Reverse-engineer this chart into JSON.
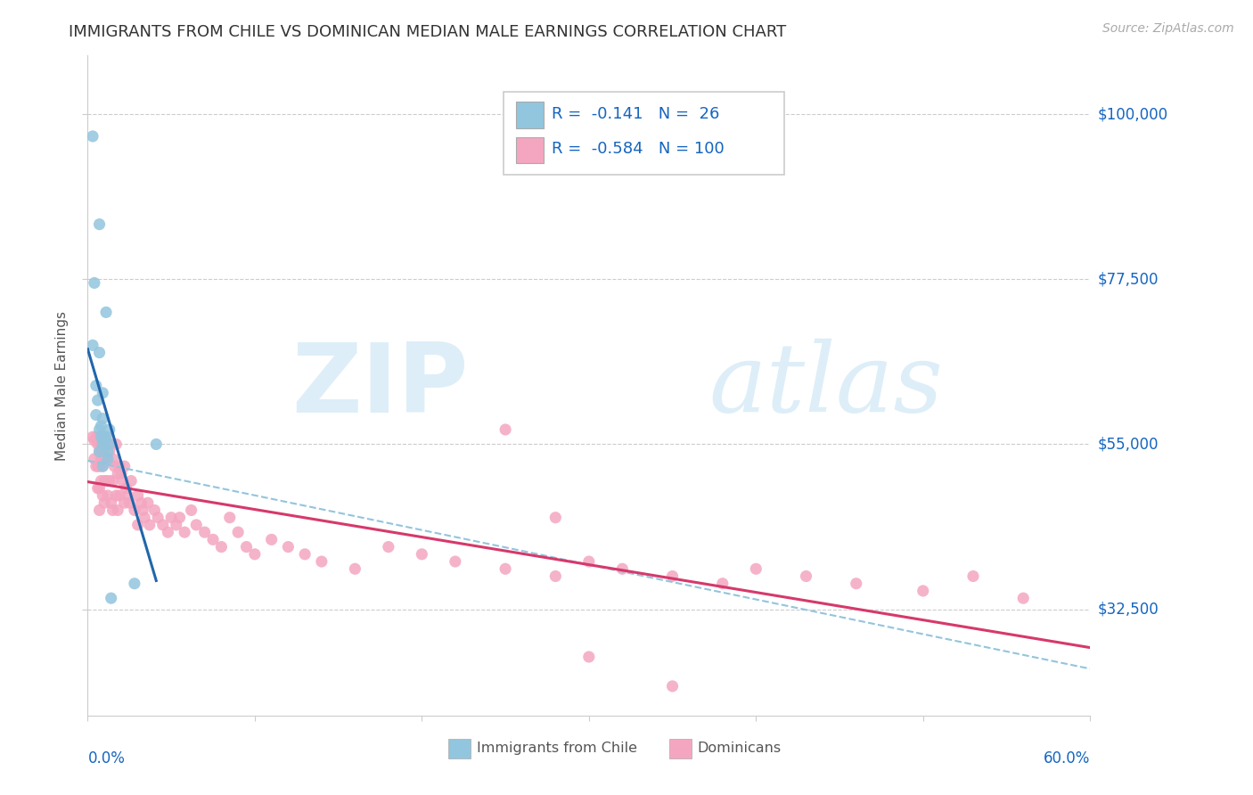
{
  "title": "IMMIGRANTS FROM CHILE VS DOMINICAN MEDIAN MALE EARNINGS CORRELATION CHART",
  "source": "Source: ZipAtlas.com",
  "ylabel": "Median Male Earnings",
  "ytick_labels": [
    "$32,500",
    "$55,000",
    "$77,500",
    "$100,000"
  ],
  "ytick_values": [
    32500,
    55000,
    77500,
    100000
  ],
  "xmin": 0.0,
  "xmax": 0.6,
  "ymin": 18000,
  "ymax": 108000,
  "legend_chile_r": "-0.141",
  "legend_chile_n": "26",
  "legend_dom_r": "-0.584",
  "legend_dom_n": "100",
  "chile_color": "#92c5de",
  "dominican_color": "#f4a6c0",
  "chile_trend_color": "#2166ac",
  "dominican_trend_color": "#d6396b",
  "dashed_color": "#92c5de",
  "right_label_color": "#1565C0",
  "legend_text_color": "#1565C0",
  "watermark_color": "#ddeef8",
  "chile_x": [
    0.003,
    0.007,
    0.004,
    0.011,
    0.003,
    0.007,
    0.005,
    0.009,
    0.006,
    0.005,
    0.009,
    0.008,
    0.013,
    0.007,
    0.011,
    0.008,
    0.01,
    0.013,
    0.009,
    0.007,
    0.012,
    0.012,
    0.009,
    0.014,
    0.028,
    0.041
  ],
  "chile_y": [
    97000,
    85000,
    77000,
    73000,
    68500,
    67500,
    63000,
    62000,
    61000,
    59000,
    58500,
    57500,
    57000,
    57000,
    56000,
    56000,
    55500,
    55000,
    55000,
    54000,
    54000,
    53000,
    52000,
    34000,
    36000,
    55000
  ],
  "dom_x": [
    0.003,
    0.004,
    0.004,
    0.005,
    0.005,
    0.006,
    0.006,
    0.006,
    0.007,
    0.007,
    0.007,
    0.007,
    0.007,
    0.008,
    0.008,
    0.008,
    0.009,
    0.009,
    0.009,
    0.009,
    0.01,
    0.01,
    0.01,
    0.01,
    0.011,
    0.011,
    0.011,
    0.012,
    0.012,
    0.013,
    0.013,
    0.014,
    0.014,
    0.015,
    0.015,
    0.015,
    0.016,
    0.017,
    0.017,
    0.018,
    0.018,
    0.019,
    0.019,
    0.02,
    0.021,
    0.022,
    0.022,
    0.023,
    0.024,
    0.025,
    0.026,
    0.028,
    0.03,
    0.03,
    0.032,
    0.033,
    0.034,
    0.036,
    0.037,
    0.04,
    0.042,
    0.045,
    0.048,
    0.05,
    0.053,
    0.055,
    0.058,
    0.062,
    0.065,
    0.07,
    0.075,
    0.08,
    0.085,
    0.09,
    0.095,
    0.1,
    0.11,
    0.12,
    0.13,
    0.14,
    0.16,
    0.18,
    0.2,
    0.22,
    0.25,
    0.28,
    0.3,
    0.32,
    0.35,
    0.38,
    0.4,
    0.43,
    0.46,
    0.5,
    0.53,
    0.56,
    0.3,
    0.25,
    0.35,
    0.28
  ],
  "dom_y": [
    56000,
    55500,
    53000,
    56000,
    52000,
    55000,
    52000,
    49000,
    56000,
    54000,
    52000,
    49000,
    46000,
    55000,
    53000,
    50000,
    56000,
    54000,
    52000,
    48000,
    55000,
    53000,
    50000,
    47000,
    56000,
    53000,
    50000,
    55000,
    48000,
    54000,
    50000,
    55000,
    47000,
    53000,
    50000,
    46000,
    52000,
    55000,
    48000,
    51000,
    46000,
    52000,
    48000,
    51000,
    50000,
    52000,
    47000,
    49000,
    48000,
    47000,
    50000,
    46000,
    48000,
    44000,
    47000,
    46000,
    45000,
    47000,
    44000,
    46000,
    45000,
    44000,
    43000,
    45000,
    44000,
    45000,
    43000,
    46000,
    44000,
    43000,
    42000,
    41000,
    45000,
    43000,
    41000,
    40000,
    42000,
    41000,
    40000,
    39000,
    38000,
    41000,
    40000,
    39000,
    38000,
    37000,
    39000,
    38000,
    37000,
    36000,
    38000,
    37000,
    36000,
    35000,
    37000,
    34000,
    26000,
    57000,
    22000,
    45000
  ]
}
